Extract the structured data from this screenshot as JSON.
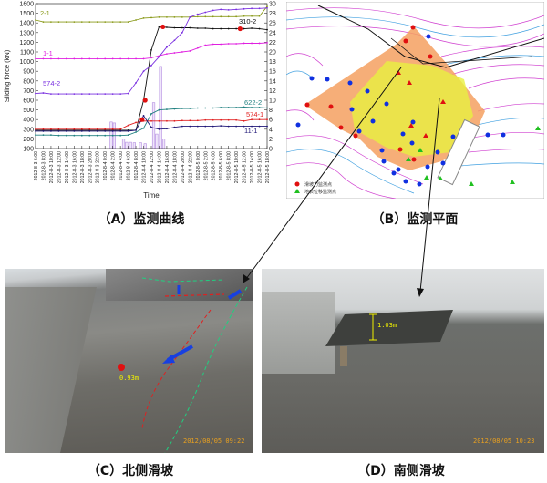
{
  "panels": {
    "a": {
      "caption": "（A）监测曲线"
    },
    "b": {
      "caption": "（B）监测平面",
      "legend": [
        "滑坡力监测点",
        "地表位移监测点"
      ]
    },
    "c": {
      "caption": "（C）北侧滑坡",
      "measurement": "0.93m",
      "timestamp": "2012/08/05 09:22"
    },
    "d": {
      "caption": "（D）南侧滑坡",
      "measurement": "1.03m",
      "timestamp": "2012/08/05 10:23"
    }
  },
  "chart_data": {
    "type": "line",
    "title": "",
    "xlabel": "Time",
    "ylabel": "Sliding force (kN)",
    "y2label": "Rainfall (cm)",
    "ylim": [
      100,
      1600
    ],
    "y2lim": [
      0,
      30
    ],
    "yticks": [
      100,
      200,
      300,
      400,
      500,
      600,
      700,
      800,
      900,
      1000,
      1100,
      1200,
      1300,
      1400,
      1500,
      1600
    ],
    "y2ticks": [
      0,
      2,
      4,
      6,
      8,
      10,
      12,
      14,
      16,
      18,
      20,
      22,
      24,
      26,
      28,
      30
    ],
    "x": [
      "2012-8-3 6:00",
      "2012-8-3 8:00",
      "2012-8-3 10:00",
      "2012-8-3 12:00",
      "2012-8-3 14:00",
      "2012-8-3 16:00",
      "2012-8-3 18:00",
      "2012-8-3 20:00",
      "2012-8-3 22:00",
      "2012-8-4 0:00",
      "2012-8-4 2:00",
      "2012-8-4 4:00",
      "2012-8-4 6:00",
      "2012-8-4 8:00",
      "2012-8-4 10:00",
      "2012-8-4 12:00",
      "2012-8-4 14:00",
      "2012-8-4 16:00",
      "2012-8-4 18:00",
      "2012-8-4 20:00",
      "2012-8-4 22:00",
      "2012-8-5 0:00",
      "2012-8-5 2:00",
      "2012-8-5 4:00",
      "2012-8-5 6:00",
      "2012-8-5 8:00",
      "2012-8-5 10:00",
      "2012-8-5 12:00",
      "2012-8-5 14:00",
      "2012-8-5 16:00",
      "2012-8-5 18:00"
    ],
    "grid": false,
    "series": [
      {
        "name": "2-1",
        "color": "#8a9a1a",
        "values": [
          1430,
          1410,
          1410,
          1410,
          1410,
          1410,
          1410,
          1410,
          1410,
          1410,
          1410,
          1410,
          1410,
          1430,
          1450,
          1455,
          1460,
          1460,
          1460,
          1460,
          1460,
          1465,
          1465,
          1465,
          1465,
          1465,
          1465,
          1470,
          1470,
          1470,
          1570
        ]
      },
      {
        "name": "310-2",
        "color": "#111111",
        "values": [
          290,
          290,
          290,
          290,
          290,
          290,
          290,
          290,
          290,
          290,
          290,
          290,
          290,
          290,
          600,
          1120,
          1360,
          1355,
          1350,
          1350,
          1350,
          1345,
          1345,
          1340,
          1340,
          1340,
          1340,
          1340,
          1345,
          1340,
          1330
        ]
      },
      {
        "name": "1-1",
        "color": "#e020e0",
        "values": [
          1030,
          1030,
          1030,
          1030,
          1030,
          1030,
          1030,
          1030,
          1030,
          1030,
          1030,
          1030,
          1030,
          1030,
          1030,
          1040,
          1060,
          1080,
          1090,
          1100,
          1110,
          1140,
          1170,
          1180,
          1180,
          1185,
          1185,
          1190,
          1190,
          1190,
          1195
        ]
      },
      {
        "name": "574-2",
        "color": "#7a30e0",
        "values": [
          670,
          675,
          665,
          665,
          665,
          665,
          665,
          665,
          665,
          665,
          665,
          665,
          670,
          780,
          900,
          960,
          1050,
          1150,
          1220,
          1300,
          1460,
          1490,
          1510,
          1530,
          1540,
          1535,
          1540,
          1545,
          1550,
          1550,
          1555
        ]
      },
      {
        "name": "622-2",
        "color": "#208080",
        "values": [
          240,
          240,
          240,
          235,
          235,
          235,
          235,
          235,
          235,
          235,
          235,
          235,
          240,
          270,
          310,
          460,
          500,
          505,
          510,
          515,
          515,
          520,
          520,
          520,
          525,
          525,
          525,
          530,
          525,
          525,
          520
        ]
      },
      {
        "name": "574-1",
        "color": "#e02020",
        "values": [
          300,
          300,
          300,
          300,
          300,
          300,
          300,
          300,
          300,
          300,
          300,
          300,
          340,
          370,
          385,
          385,
          385,
          385,
          385,
          390,
          390,
          390,
          395,
          395,
          395,
          395,
          395,
          385,
          400,
          400,
          400
        ]
      },
      {
        "name": "11-1",
        "color": "#201878",
        "values": [
          280,
          280,
          280,
          280,
          280,
          280,
          280,
          280,
          280,
          280,
          280,
          280,
          280,
          290,
          440,
          320,
          300,
          305,
          320,
          330,
          330,
          330,
          330,
          330,
          335,
          330,
          330,
          330,
          330,
          330,
          330
        ]
      }
    ],
    "markers": {
      "series": "310-2",
      "color": "#e01010",
      "points": [
        [
          13.8,
          400
        ],
        [
          14.2,
          600
        ],
        [
          16.5,
          1360
        ],
        [
          26.5,
          1340
        ]
      ]
    },
    "rainfall": {
      "color": "#b28ae0",
      "bars": [
        [
          9.8,
          5.5
        ],
        [
          10.2,
          5.3
        ],
        [
          11.4,
          2.0
        ],
        [
          11.8,
          1.3
        ],
        [
          12.3,
          1.3
        ],
        [
          12.8,
          1.2
        ],
        [
          13.6,
          1.2
        ],
        [
          14.2,
          1.0
        ],
        [
          15.3,
          9.5
        ],
        [
          15.7,
          3.0
        ],
        [
          16.2,
          17.0
        ],
        [
          16.6,
          2.0
        ]
      ]
    }
  }
}
